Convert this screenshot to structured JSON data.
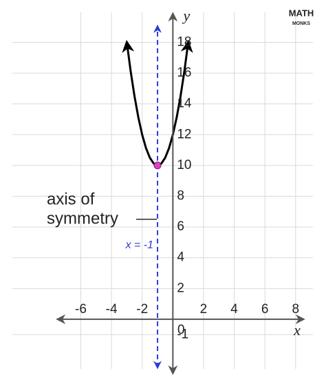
{
  "chart_data": {
    "type": "line",
    "x": [
      -3,
      -2.75,
      -2.5,
      -2.25,
      -2,
      -1.75,
      -1.5,
      -1.25,
      -1,
      -0.75,
      -0.5,
      -0.25,
      0,
      0.25,
      0.5,
      0.75,
      1
    ],
    "series": [
      {
        "color": "#000000",
        "values": [
          18,
          16.125,
          14.5,
          13.125,
          12,
          11.125,
          10.5,
          10.125,
          10,
          10.125,
          10.5,
          11.125,
          12,
          13.125,
          14.5,
          16.125,
          18
        ]
      }
    ],
    "vertex": {
      "x": -1,
      "y": 10,
      "color": "#e040c8"
    },
    "symmetry_axis": {
      "x": -1,
      "label": "x = -1",
      "color": "#2a3ed8"
    },
    "annotation": [
      "axis of",
      "symmetry"
    ],
    "xlabel": "x",
    "ylabel": "y",
    "xlim": [
      -7.5,
      8.5
    ],
    "ylim": [
      -3.5,
      19.5
    ],
    "xticks": [
      -6,
      -4,
      -2,
      0,
      2,
      4,
      6,
      8
    ],
    "yticks": [
      -1,
      2,
      4,
      6,
      8,
      10,
      12,
      14,
      16,
      18
    ],
    "grid": true,
    "logo": [
      "MATH",
      "MONKS"
    ]
  }
}
